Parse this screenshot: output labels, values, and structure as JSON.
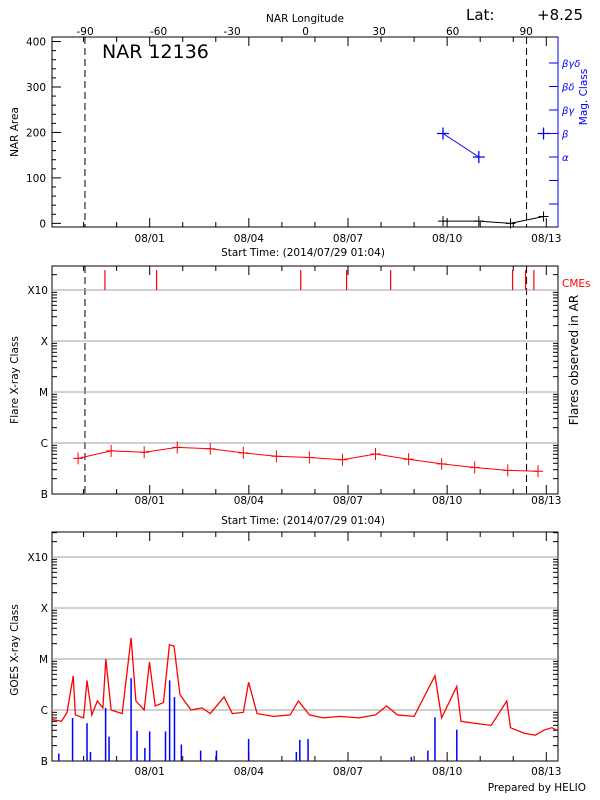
{
  "header": {
    "lat_label": "Lat:",
    "lat_value": "+8.25",
    "top_axis_label": "NAR Longitude"
  },
  "footer": {
    "credit": "Prepared by HELIO"
  },
  "chart_data": [
    {
      "type": "line",
      "panel": "top",
      "title": "NAR 12136",
      "xlabel": "Start Time: (2014/07/29 01:04)",
      "ylabel": "NAR Area",
      "y2label": "Mag. Class",
      "x_start": "2014/07/29 01:04",
      "x_end": "2014/08/13 08:30",
      "x_ticks": [
        "08/01",
        "08/04",
        "08/07",
        "08/10",
        "08/13"
      ],
      "top_axis": {
        "label": "NAR Longitude",
        "ticks": [
          -90,
          -60,
          -30,
          0,
          30,
          60,
          90
        ],
        "range": [
          -103.5,
          103
        ]
      },
      "limb_times": [
        "2014/07/30 01:00",
        "2014/08/12 09:40"
      ],
      "ylim": [
        -8,
        410
      ],
      "y_ticks": [
        0,
        100,
        200,
        300,
        400
      ],
      "y2_classes": [
        "",
        "",
        "α",
        "β",
        "βγ",
        "βδ",
        "βγδ"
      ],
      "colors": {
        "area": "#000000",
        "mag": "#0000ff"
      },
      "series": [
        {
          "kind": "area",
          "x": [
            "2014/08/09 21:00",
            "2014/08/10 23:00",
            "2014/08/11 22:00",
            "2014/08/12 22:00"
          ],
          "values": [
            5,
            5,
            0,
            15
          ]
        },
        {
          "kind": "mag_class",
          "x": [
            "2014/08/09 21:00",
            "2014/08/10 23:00",
            "2014/08/12 22:00"
          ],
          "values": [
            "β",
            "α",
            "β"
          ],
          "connected": [
            true,
            false
          ]
        }
      ]
    },
    {
      "type": "line",
      "panel": "middle",
      "xlabel": "Start Time: (2014/07/29 01:04)",
      "ylabel": "Flare X-ray Class",
      "y2label": "Flares observed in AR",
      "cme_label": "CMEs",
      "x_start": "2014/07/29 01:04",
      "x_end": "2014/08/13 08:30",
      "x_ticks": [
        "08/01",
        "08/04",
        "08/07",
        "08/10",
        "08/13"
      ],
      "y_scale": "log",
      "y_ticks": [
        "B",
        "C",
        "M",
        "X",
        "X10"
      ],
      "grid": true,
      "limb_times": [
        "2014/07/30 01:00",
        "2014/08/12 09:40"
      ],
      "colors": {
        "flare": "#ff0000",
        "cme": "#ff0000",
        "grid": "#a0a0a0"
      },
      "cmes": [
        "2014/07/30 15:30",
        "2014/08/01 05:00",
        "2014/08/05 13:40",
        "2014/08/06 23:00",
        "2014/08/08 07:00",
        "2014/08/11 23:30",
        "2014/08/12 09:00",
        "2014/08/12 15:00"
      ],
      "series": [
        {
          "kind": "flare_class",
          "x": [
            "2014/07/29 20:00",
            "2014/07/30 20:00",
            "2014/07/31 20:00",
            "2014/08/01 20:00",
            "2014/08/02 20:00",
            "2014/08/03 20:00",
            "2014/08/04 20:00",
            "2014/08/05 20:00",
            "2014/08/06 20:00",
            "2014/08/07 20:00",
            "2014/08/08 20:00",
            "2014/08/09 20:00",
            "2014/08/10 20:00",
            "2014/08/11 20:00",
            "2014/08/12 18:00"
          ],
          "values": [
            "B5.0",
            "B7.0",
            "B6.6",
            "B8.2",
            "B7.7",
            "B6.4",
            "B5.5",
            "B5.2",
            "B4.7",
            "B6.1",
            "B4.8",
            "B3.9",
            "B3.3",
            "B2.9",
            "B2.8"
          ]
        }
      ]
    },
    {
      "type": "line",
      "panel": "bottom",
      "ylabel": "GOES X-ray Class",
      "x_start": "2014/07/29 01:04",
      "x_end": "2014/08/13 08:30",
      "x_ticks": [
        "08/01",
        "08/04",
        "08/07",
        "08/10",
        "08/13"
      ],
      "y_scale": "log",
      "y_ticks": [
        "B",
        "C",
        "M",
        "X",
        "X10"
      ],
      "grid": true,
      "colors": {
        "goes": "#ff0000",
        "ar_flares": "#0000ff",
        "grid": "#a0a0a0"
      },
      "series": [
        {
          "kind": "goes_flux",
          "x": [
            "2014/07/29 01:04",
            "2014/07/29 08:00",
            "2014/07/29 12:00",
            "2014/07/29 16:30",
            "2014/07/29 18:00",
            "2014/07/30 00:00",
            "2014/07/30 02:30",
            "2014/07/30 06:00",
            "2014/07/30 10:00",
            "2014/07/30 14:00",
            "2014/07/30 16:10",
            "2014/07/30 20:00",
            "2014/07/31 04:00",
            "2014/07/31 10:30",
            "2014/07/31 14:00",
            "2014/07/31 20:00",
            "2014/07/31 23:50",
            "2014/08/01 04:00",
            "2014/08/01 10:00",
            "2014/08/01 14:20",
            "2014/08/01 17:40",
            "2014/08/01 22:00",
            "2014/08/02 06:00",
            "2014/08/02 14:00",
            "2014/08/02 20:00",
            "2014/08/03 06:00",
            "2014/08/03 12:00",
            "2014/08/03 20:00",
            "2014/08/03 23:50",
            "2014/08/04 06:00",
            "2014/08/04 18:00",
            "2014/08/05 06:00",
            "2014/08/05 12:00",
            "2014/08/05 20:00",
            "2014/08/06 06:00",
            "2014/08/06 18:00",
            "2014/08/07 08:00",
            "2014/08/07 20:00",
            "2014/08/08 04:00",
            "2014/08/08 12:00",
            "2014/08/09 00:00",
            "2014/08/09 15:10",
            "2014/08/09 20:00",
            "2014/08/10 07:00",
            "2014/08/10 10:00",
            "2014/08/10 20:00",
            "2014/08/11 08:00",
            "2014/08/11 19:20",
            "2014/08/11 22:00",
            "2014/08/12 08:00",
            "2014/08/12 16:00",
            "2014/08/12 22:00",
            "2014/08/13 04:00",
            "2014/08/13 08:00"
          ],
          "values": [
            "B6.5",
            "B6.0",
            "B9.0",
            "C4.7",
            "B8.0",
            "B7.0",
            "C3.8",
            "B8.0",
            "C1.5",
            "C1.1",
            "M1.0",
            "C1.0",
            "B8.5",
            "M2.6",
            "C1.5",
            "C1.0",
            "C8.7",
            "C1.2",
            "C1.4",
            "M1.9",
            "M1.8",
            "C2.0",
            "C1.0",
            "C1.1",
            "B8.5",
            "C1.8",
            "B8.5",
            "B9.0",
            "C3.5",
            "B8.5",
            "B7.5",
            "B8.0",
            "C1.5",
            "B8.0",
            "B7.0",
            "B7.5",
            "B7.0",
            "B8.0",
            "C1.2",
            "B8.0",
            "B7.5",
            "C4.7",
            "B7.0",
            "C2.9",
            "B6.0",
            "B5.5",
            "B5.0",
            "C1.5",
            "B4.5",
            "B3.5",
            "B3.2",
            "B4.0",
            "B4.5",
            "B4.0"
          ]
        },
        {
          "kind": "ar_flares",
          "x": [
            "2014/07/29 06:00",
            "2014/07/29 16:00",
            "2014/07/30 02:30",
            "2014/07/30 05:00",
            "2014/07/30 16:00",
            "2014/07/30 18:30",
            "2014/07/31 10:30",
            "2014/07/31 14:50",
            "2014/07/31 20:30",
            "2014/08/01 00:00",
            "2014/08/01 11:30",
            "2014/08/01 14:30",
            "2014/08/01 18:00",
            "2014/08/01 23:00",
            "2014/08/02 13:00",
            "2014/08/03 00:30",
            "2014/08/03 23:50",
            "2014/08/05 10:30",
            "2014/08/05 13:00",
            "2014/08/05 19:00",
            "2014/08/08 22:00",
            "2014/08/09 10:00",
            "2014/08/09 15:10",
            "2014/08/10 07:00"
          ],
          "values": [
            "B1.4",
            "B7.0",
            "B5.5",
            "B1.5",
            "C1.1",
            "B3.0",
            "C4.2",
            "B3.9",
            "B1.8",
            "B3.8",
            "B3.8",
            "C3.8",
            "C1.8",
            "B2.1",
            "B1.6",
            "B1.6",
            "B2.7",
            "B1.5",
            "B2.6",
            "B2.7",
            "B1.2",
            "B1.6",
            "B7.2",
            "B4.1"
          ]
        }
      ]
    }
  ]
}
